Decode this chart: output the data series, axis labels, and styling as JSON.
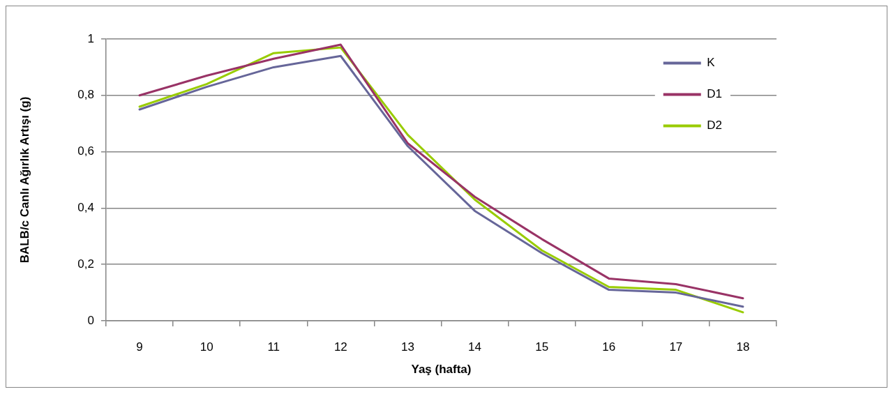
{
  "chart_data": {
    "type": "line",
    "xlabel": "Yaş (hafta)",
    "ylabel": "BALB/c Canlı Ağırlık Artışı (g)",
    "categories": [
      "9",
      "10",
      "11",
      "12",
      "13",
      "14",
      "15",
      "16",
      "17",
      "18"
    ],
    "series": [
      {
        "name": "K",
        "color": "#666699",
        "values": [
          0.75,
          0.83,
          0.9,
          0.94,
          0.62,
          0.39,
          0.24,
          0.11,
          0.1,
          0.05
        ]
      },
      {
        "name": "D1",
        "color": "#993366",
        "values": [
          0.8,
          0.87,
          0.93,
          0.98,
          0.63,
          0.44,
          0.29,
          0.15,
          0.13,
          0.08
        ]
      },
      {
        "name": "D2",
        "color": "#99cc00",
        "values": [
          0.76,
          0.84,
          0.95,
          0.97,
          0.66,
          0.43,
          0.25,
          0.12,
          0.11,
          0.03
        ]
      }
    ],
    "ylim": [
      0,
      1
    ],
    "yticks": [
      0,
      {
        "value": 0.2,
        "label": "0,2"
      },
      {
        "value": 0.4,
        "label": "0,4"
      },
      {
        "value": 0.6,
        "label": "0,6"
      },
      {
        "value": 0.8,
        "label": "0,8"
      },
      1
    ],
    "grid": "y",
    "legend": "top right",
    "marker": "none",
    "line_style": "solid"
  }
}
